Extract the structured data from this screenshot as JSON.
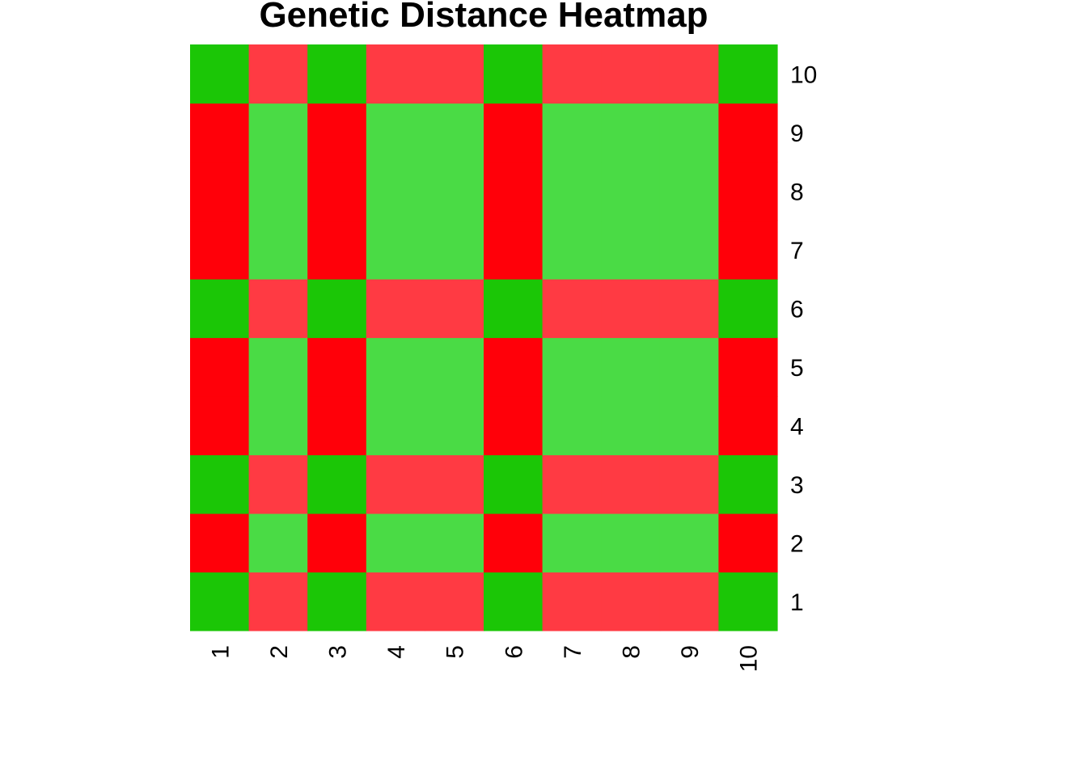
{
  "chart_data": {
    "type": "heatmap",
    "title": "Genetic Distance Heatmap",
    "x_labels": [
      "1",
      "2",
      "3",
      "4",
      "5",
      "6",
      "7",
      "8",
      "9",
      "10"
    ],
    "y_labels": [
      "1",
      "2",
      "3",
      "4",
      "5",
      "6",
      "7",
      "8",
      "9",
      "10"
    ],
    "legend": "none",
    "grid": false,
    "palette": {
      "A": "#1BC606",
      "B": "#FF3A43",
      "C": "#FF0009",
      "D": "#4ADB45"
    },
    "column_groups": [
      "G",
      "H",
      "G",
      "H",
      "H",
      "G",
      "H",
      "H",
      "H",
      "G"
    ],
    "row_groups": [
      "G",
      "H",
      "G",
      "H",
      "H",
      "G",
      "H",
      "H",
      "H",
      "G"
    ],
    "cell_class_rule": {
      "G|G": "A",
      "G|H": "B",
      "H|G": "C",
      "H|H": "D"
    }
  }
}
